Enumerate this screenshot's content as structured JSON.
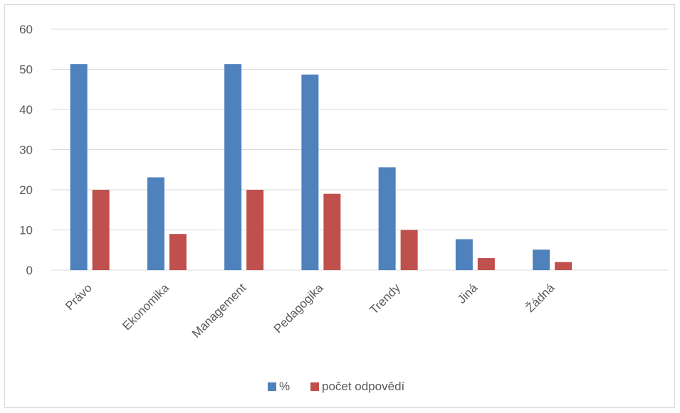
{
  "chart_data": {
    "type": "bar",
    "categories": [
      "Právo",
      "Ekonomika",
      "Management",
      "Pedagogika",
      "Trendy",
      "Jiná",
      "Žádná",
      ""
    ],
    "series": [
      {
        "name": "%",
        "values": [
          51.3,
          23.1,
          51.3,
          48.7,
          25.6,
          7.7,
          5.1,
          null
        ],
        "color": "#4f81bd"
      },
      {
        "name": "počet odpovědí",
        "values": [
          20,
          9,
          20,
          19,
          10,
          3,
          2,
          null
        ],
        "color": "#c0504d"
      }
    ],
    "yticks": [
      0,
      10,
      20,
      30,
      40,
      50,
      60
    ],
    "ylim": [
      0,
      60
    ],
    "grid": true,
    "legend_position": "bottom",
    "title": "",
    "xlabel": "",
    "ylabel": ""
  }
}
